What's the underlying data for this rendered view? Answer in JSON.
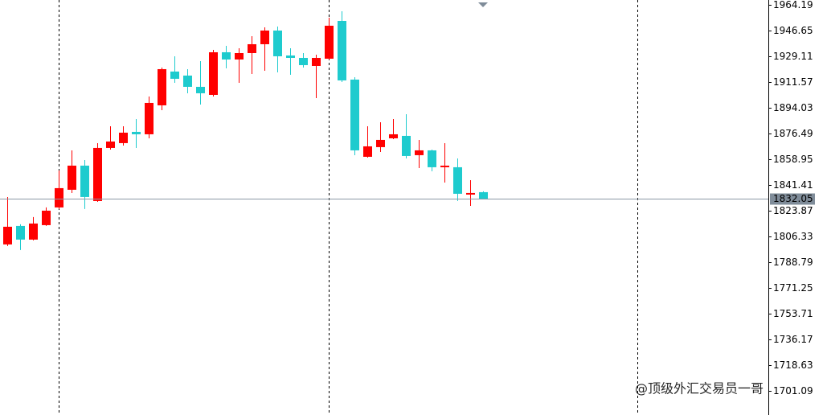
{
  "chart_data": {
    "type": "candlestick",
    "categories": [
      null,
      null,
      null,
      null,
      null,
      null,
      null,
      null,
      null,
      null,
      null,
      null,
      null,
      null,
      null,
      null,
      null,
      null,
      null,
      null,
      null,
      null,
      null,
      null,
      null,
      null,
      null,
      null,
      null,
      null,
      null,
      null,
      null,
      null,
      null,
      null,
      null,
      null
    ],
    "open": [
      1800.89,
      1813.49,
      1804.18,
      1814.04,
      1826.1,
      1838.15,
      1854.59,
      1830.48,
      1866.65,
      1869.94,
      1877.61,
      1875.96,
      1895.69,
      1918.71,
      1915.97,
      1908.3,
      1902.82,
      1931.86,
      1926.93,
      1931.31,
      1937.34,
      1946.66,
      1929.67,
      1928.02,
      1922.54,
      1927.48,
      1953.23,
      1913.23,
      1860.62,
      1867.2,
      1873.22,
      1874.87,
      1861.72,
      1865.0,
      1853.5,
      1853.5,
      1834.86,
      1836.51
    ],
    "high": [
      1833.22,
      1814.59,
      1819.52,
      1826.1,
      1851.3,
      1865.0,
      1858.43,
      1869.94,
      1881.44,
      1881.44,
      1886.38,
      1901.72,
      1921.45,
      1929.12,
      1920.35,
      1925.83,
      1933.5,
      1936.24,
      1934.6,
      1942.82,
      1948.85,
      1949.4,
      1934.6,
      1931.31,
      1930.22,
      1955.42,
      1959.81,
      1914.87,
      1881.44,
      1884.18,
      1886.38,
      1889.66,
      1872.13,
      1865.55,
      1869.94,
      1859.52,
      1844.73,
      1837.06
    ],
    "low": [
      1799.79,
      1797.05,
      1803.63,
      1813.49,
      1825.0,
      1835.96,
      1825.0,
      1829.93,
      1865.55,
      1868.29,
      1866.65,
      1873.22,
      1892.4,
      1911.04,
      1903.91,
      1896.24,
      1901.72,
      1920.9,
      1911.04,
      1917.06,
      1919.26,
      1918.16,
      1916.52,
      1921.45,
      1900.62,
      1926.93,
      1911.58,
      1861.72,
      1860.07,
      1863.91,
      1872.68,
      1859.52,
      1852.95,
      1850.76,
      1843.08,
      1830.48,
      1827.19,
      1831.58
    ],
    "close": [
      1812.94,
      1804.18,
      1815.14,
      1823.9,
      1839.25,
      1854.59,
      1833.22,
      1866.65,
      1871.03,
      1877.06,
      1875.96,
      1897.34,
      1920.35,
      1913.78,
      1908.3,
      1903.91,
      1931.86,
      1926.93,
      1931.31,
      1937.34,
      1946.66,
      1929.12,
      1928.02,
      1923.09,
      1928.02,
      1949.94,
      1912.68,
      1865.0,
      1867.74,
      1872.13,
      1875.96,
      1861.17,
      1865.0,
      1853.5,
      1854.59,
      1835.41,
      1835.96,
      1832.05
    ],
    "up_color": "#ff0000",
    "down_color": "#1ecbce",
    "last_price": 1832.05,
    "ylim": [
      1684.64,
      1967.48
    ],
    "yticks": [
      1964.19,
      1946.65,
      1929.11,
      1911.57,
      1894.03,
      1876.49,
      1858.95,
      1841.41,
      1823.87,
      1806.33,
      1788.79,
      1771.25,
      1753.71,
      1736.17,
      1718.63,
      1701.09
    ],
    "watermark": "@顶级外汇交易员一哥"
  }
}
